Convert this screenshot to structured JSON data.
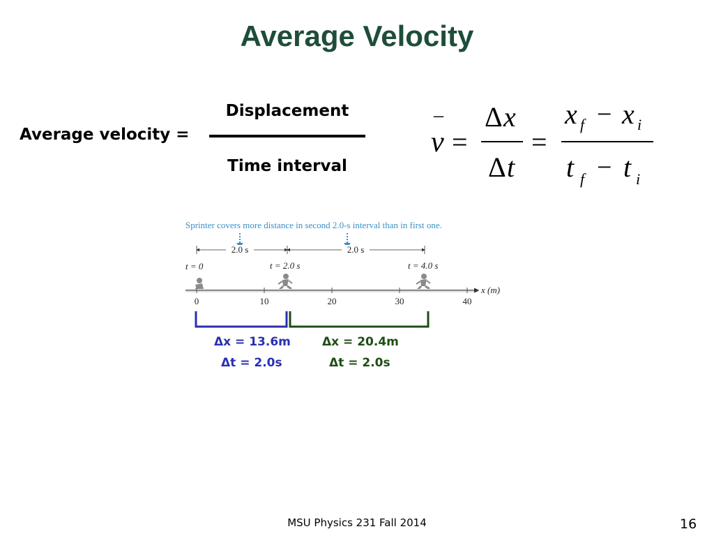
{
  "slide": {
    "title": "Average Velocity",
    "word_equation": {
      "label": "Average velocity =",
      "numerator": "Displacement",
      "denominator": "Time interval"
    },
    "formula": {
      "v": "v",
      "bar": "–",
      "delta": "Δ",
      "x": "x",
      "t": "t",
      "equals": "=",
      "minus": "−",
      "sub_f": "f",
      "sub_i": "i"
    },
    "figure": {
      "caption": "Sprinter covers more distance in second 2.0-s interval than in first one.",
      "interval_1": "2.0 s",
      "interval_2": "2.0 s",
      "time_0": "t = 0",
      "time_1": "t = 2.0 s",
      "time_2": "t = 4.0 s",
      "axis_label": "x (m)",
      "ticks": [
        "0",
        "10",
        "20",
        "30",
        "40"
      ]
    },
    "brackets": {
      "first": {
        "dx": "Δx = 13.6m",
        "dt": "Δt = 2.0s",
        "color": "#2a2fb0"
      },
      "second": {
        "dx": "Δx = 20.4m",
        "dt": "Δt = 2.0s",
        "color": "#1f4d14"
      }
    },
    "footer": "MSU Physics 231 Fall 2014",
    "page_number": "16"
  }
}
